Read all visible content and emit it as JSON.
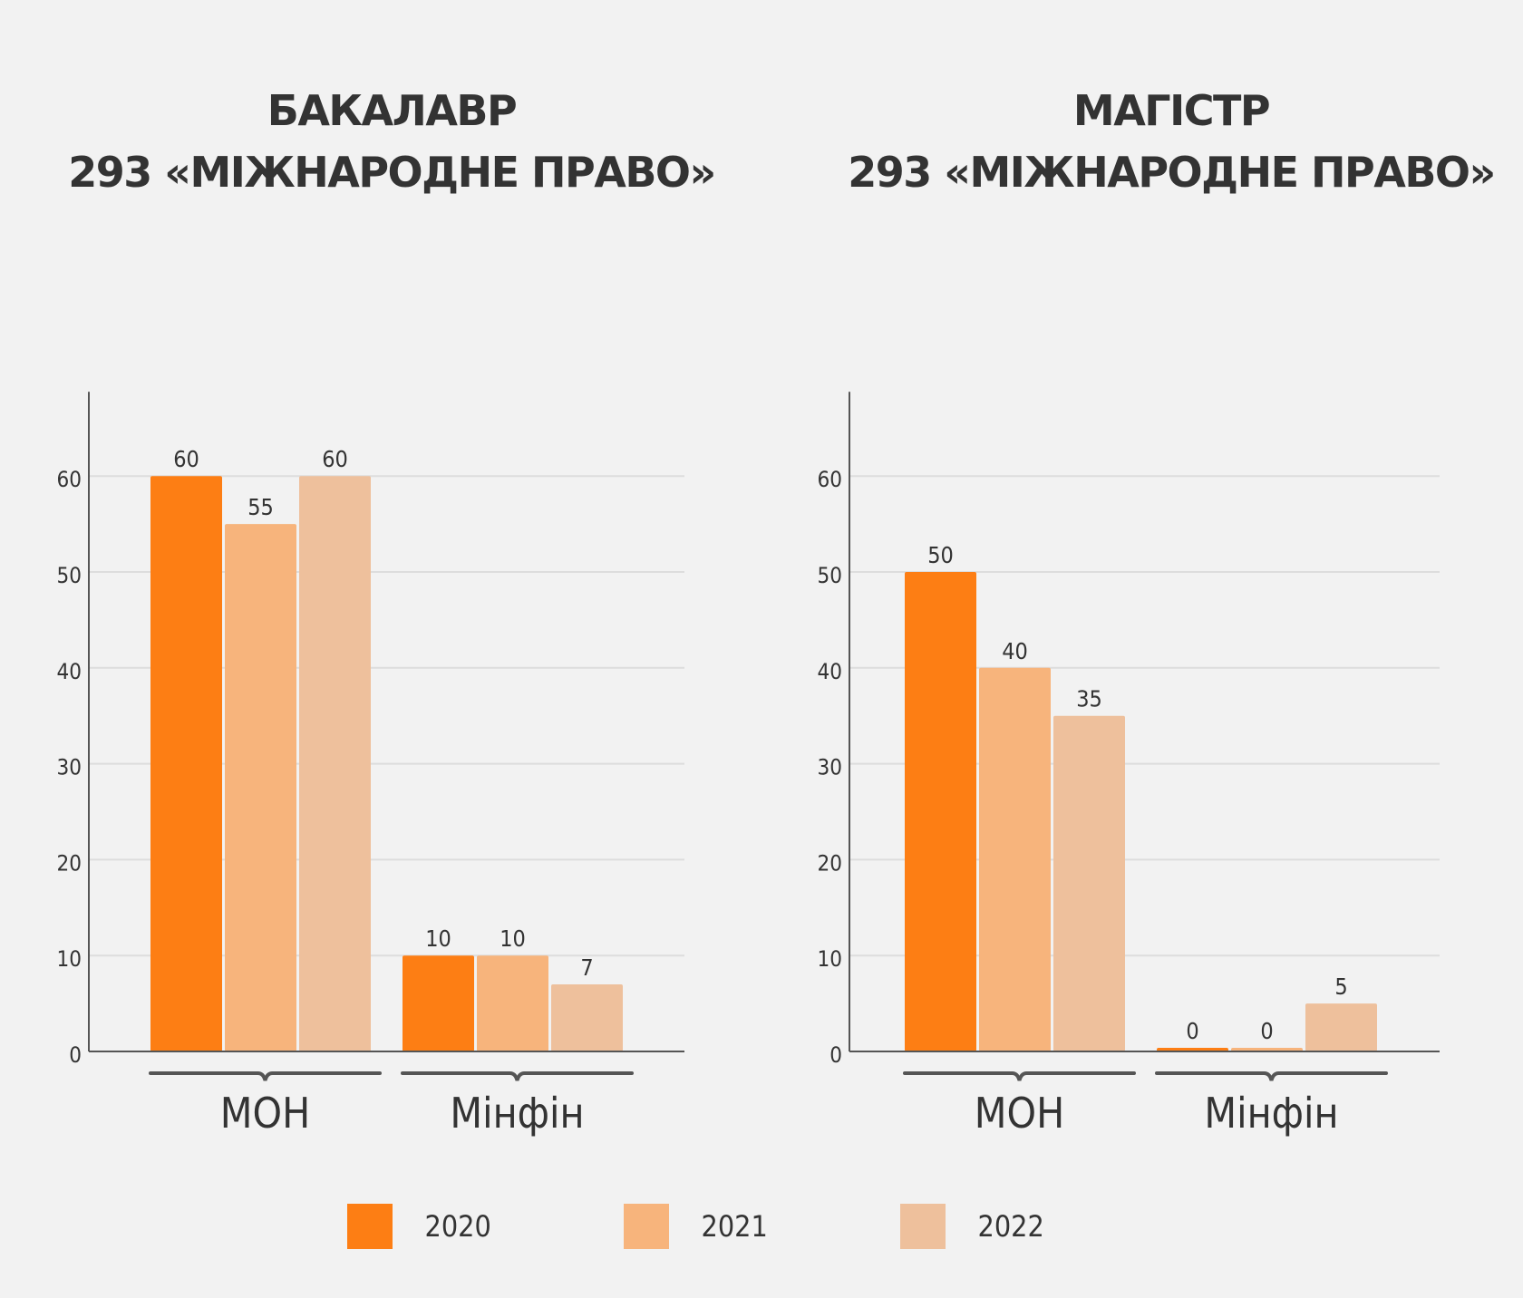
{
  "colors": {
    "2020": "#fd7e14",
    "2021": "#f7b47c",
    "2022": "#eec09c",
    "axis": "#555555",
    "grid": "#dddddd",
    "text": "#333333"
  },
  "chart_data": [
    {
      "type": "bar",
      "title_line1": "БАКАЛАВР",
      "title_line2": "293 «МІЖНАРОДНЕ ПРАВО»",
      "categories": [
        "МОН",
        "Мінфін"
      ],
      "series": [
        {
          "name": "2020",
          "values": [
            60,
            10
          ]
        },
        {
          "name": "2021",
          "values": [
            55,
            10
          ]
        },
        {
          "name": "2022",
          "values": [
            60,
            7
          ]
        }
      ],
      "yticks": [
        0,
        10,
        20,
        30,
        40,
        50,
        60
      ],
      "ylim": [
        0,
        65
      ],
      "grid": true
    },
    {
      "type": "bar",
      "title_line1": "МАГІСТР",
      "title_line2": "293 «МІЖНАРОДНЕ ПРАВО»",
      "categories": [
        "МОН",
        "Мінфін"
      ],
      "series": [
        {
          "name": "2020",
          "values": [
            50,
            0
          ]
        },
        {
          "name": "2021",
          "values": [
            40,
            0
          ]
        },
        {
          "name": "2022",
          "values": [
            35,
            5
          ]
        }
      ],
      "yticks": [
        0,
        10,
        20,
        30,
        40,
        50,
        60
      ],
      "ylim": [
        0,
        65
      ],
      "grid": true
    }
  ],
  "legend": [
    {
      "label": "2020"
    },
    {
      "label": "2021"
    },
    {
      "label": "2022"
    }
  ]
}
